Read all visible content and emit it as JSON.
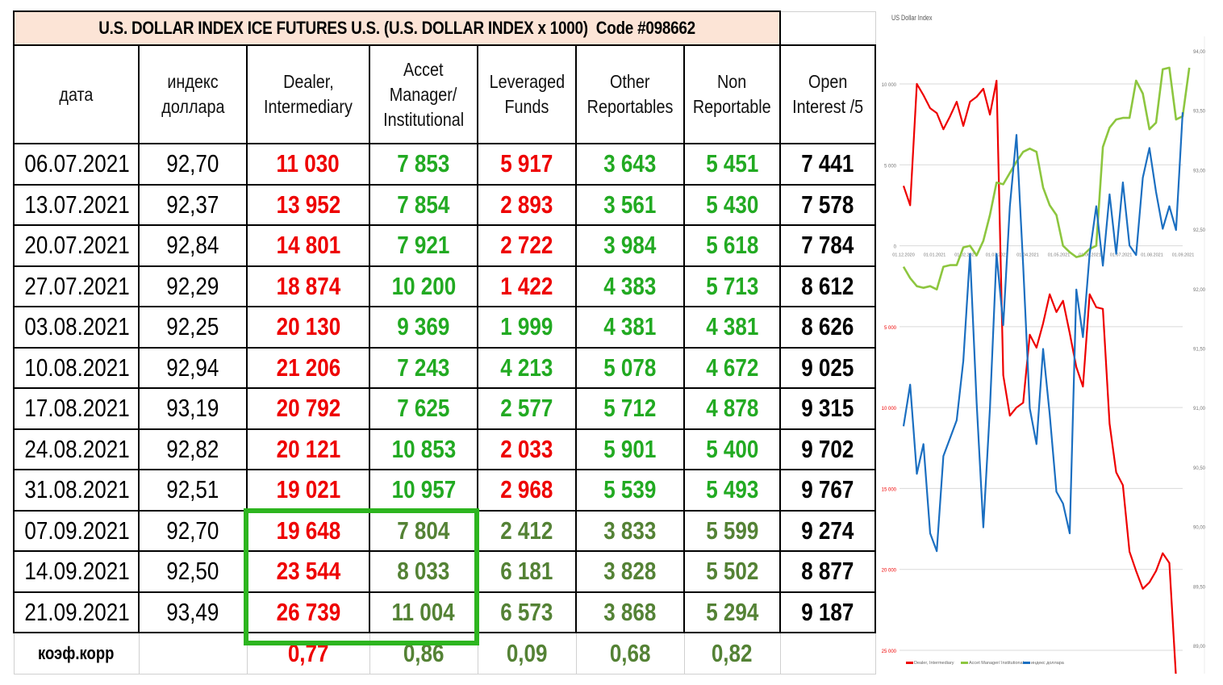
{
  "table": {
    "title": "U.S. DOLLAR INDEX ICE FUTURES U.S. (U.S. DOLLAR INDEX x 1000)  Code #098662",
    "headers": {
      "date": "дата",
      "index": "индекс доллара",
      "dealer_l1": "Dealer,",
      "dealer_l2": "Intermediary",
      "asset_l1": "Accet",
      "asset_l2": "Manager/",
      "asset_l3": "Institutional",
      "lev_l1": "Leveraged",
      "lev_l2": "Funds",
      "other_l1": "Other",
      "other_l2": "Reportables",
      "nonrep_l1": "Non",
      "nonrep_l2": "Reportable",
      "oi_l1": "Open",
      "oi_l2": "Interest /5"
    },
    "rows": [
      {
        "date": "06.07.2021",
        "index": "92,70",
        "dealer": "11 030",
        "asset": "7 853",
        "lev": "5 917",
        "other": "3 643",
        "nonrep": "5 451",
        "oi": "7 441"
      },
      {
        "date": "13.07.2021",
        "index": "92,37",
        "dealer": "13 952",
        "asset": "7 854",
        "lev": "2 893",
        "other": "3 561",
        "nonrep": "5 430",
        "oi": "7 578"
      },
      {
        "date": "20.07.2021",
        "index": "92,84",
        "dealer": "14 801",
        "asset": "7 921",
        "lev": "2 722",
        "other": "3 984",
        "nonrep": "5 618",
        "oi": "7 784"
      },
      {
        "date": "27.07.2021",
        "index": "92,29",
        "dealer": "18 874",
        "asset": "10 200",
        "lev": "1 422",
        "other": "4 383",
        "nonrep": "5 713",
        "oi": "8 612"
      },
      {
        "date": "03.08.2021",
        "index": "92,25",
        "dealer": "20 130",
        "asset": "9 369",
        "lev": "1 999",
        "other": "4 381",
        "nonrep": "4 381",
        "oi": "8 626"
      },
      {
        "date": "10.08.2021",
        "index": "92,94",
        "dealer": "21 206",
        "asset": "7 243",
        "lev": "4 213",
        "other": "5 078",
        "nonrep": "4 672",
        "oi": "9 025"
      },
      {
        "date": "17.08.2021",
        "index": "93,19",
        "dealer": "20 792",
        "asset": "7 625",
        "lev": "2 577",
        "other": "5 712",
        "nonrep": "4 878",
        "oi": "9 315"
      },
      {
        "date": "24.08.2021",
        "index": "92,82",
        "dealer": "20 121",
        "asset": "10 853",
        "lev": "2 033",
        "other": "5 901",
        "nonrep": "5 400",
        "oi": "9 702"
      },
      {
        "date": "31.08.2021",
        "index": "92,51",
        "dealer": "19 021",
        "asset": "10 957",
        "lev": "2 968",
        "other": "5 539",
        "nonrep": "5 493",
        "oi": "9 767"
      },
      {
        "date": "07.09.2021",
        "index": "92,70",
        "dealer": "19 648",
        "asset": "7 804",
        "lev": "2 412",
        "other": "3 833",
        "nonrep": "5 599",
        "oi": "9 274"
      },
      {
        "date": "14.09.2021",
        "index": "92,50",
        "dealer": "23 544",
        "asset": "8 033",
        "lev": "6 181",
        "other": "3 828",
        "nonrep": "5 502",
        "oi": "8 877"
      },
      {
        "date": "21.09.2021",
        "index": "93,49",
        "dealer": "26 739",
        "asset": "11 004",
        "lev": "6 573",
        "other": "3 868",
        "nonrep": "5 294",
        "oi": "9 187"
      }
    ],
    "corr": {
      "label": "коэф.корр",
      "index": "",
      "dealer": "0,77",
      "asset": "0,86",
      "lev": "0,09",
      "other": "0,68",
      "nonrep": "0,82",
      "oi": ""
    },
    "colors": {
      "red": "#ee0000",
      "green": "#22aa22",
      "dark_green": "#548235",
      "title_bg": "#fce4d6",
      "highlight_box": "#2db51f"
    }
  },
  "chart_data": {
    "type": "line",
    "title": "US Dollar Index",
    "x_ticks": [
      "01.12.2020",
      "01.01.2021",
      "01.02.2021",
      "01.03.2021",
      "01.04.2021",
      "01.05.2021",
      "01.06.2021",
      "01.07.2021",
      "01.08.2021",
      "01.09.2021"
    ],
    "y_left_ticks": [
      "10 000",
      "5 000",
      "0",
      "5 000",
      "10 000",
      "15 000",
      "20 000",
      "25 000"
    ],
    "y_left_range": [
      -25000,
      10000
    ],
    "y_left_note": "negative values shown in red (inverted positions)",
    "y_right_ticks": [
      "94,00",
      "93,50",
      "93,00",
      "92,50",
      "92,00",
      "91,50",
      "91,00",
      "90,50",
      "90,00",
      "89,50",
      "89,00"
    ],
    "y_right_range": [
      89.0,
      94.0
    ],
    "series": [
      {
        "name": "Dealer, Intermediary",
        "color": "#ee0000",
        "axis": "left",
        "values": [
          3700,
          2500,
          10000,
          9300,
          8500,
          8200,
          7200,
          8000,
          8900,
          7400,
          8900,
          9200,
          9700,
          8100,
          10200,
          -8000,
          -10500,
          -10000,
          -9700,
          -5500,
          -6300,
          -4800,
          -3000,
          -4100,
          -3400,
          -5400,
          -7500,
          -8700,
          -3000,
          -3800,
          -3900,
          -11000,
          -14000,
          -14800,
          -18900,
          -20100,
          -21200,
          -20800,
          -20100,
          -19000,
          -19600,
          -26700
        ]
      },
      {
        "name": "Accet Manager/ Institutional",
        "color": "#8dc63f",
        "axis": "left",
        "values": [
          -1300,
          -2000,
          -2500,
          -2600,
          -2500,
          -2700,
          -1300,
          -1200,
          -1200,
          -100,
          0,
          -600,
          300,
          1900,
          3900,
          3800,
          4500,
          5200,
          5800,
          6000,
          5800,
          3600,
          2500,
          1900,
          0,
          -400,
          -700,
          -600,
          -200,
          0,
          6100,
          7300,
          7800,
          7900,
          7900,
          10200,
          9400,
          7200,
          7600,
          10900,
          11000,
          7800,
          8000,
          11000
        ]
      },
      {
        "name": "индекс доллара",
        "color": "#1b6fc1",
        "axis": "right",
        "values": [
          90.85,
          91.2,
          90.45,
          90.7,
          89.95,
          89.8,
          90.6,
          90.75,
          90.9,
          91.4,
          92.3,
          91.05,
          90.0,
          91.0,
          92.3,
          91.7,
          92.7,
          93.3,
          92.2,
          91.0,
          90.7,
          91.5,
          90.95,
          90.3,
          90.2,
          89.95,
          92.0,
          91.6,
          92.3,
          92.7,
          92.2,
          92.8,
          92.3,
          92.9,
          92.37,
          92.29,
          92.94,
          93.19,
          92.82,
          92.51,
          92.7,
          92.5,
          93.49
        ]
      }
    ],
    "legend": [
      "Dealer, Intermediary",
      "Accet Manager/ Institutional",
      "индекс доллара"
    ],
    "legend_position": "bottom",
    "grid": true
  }
}
